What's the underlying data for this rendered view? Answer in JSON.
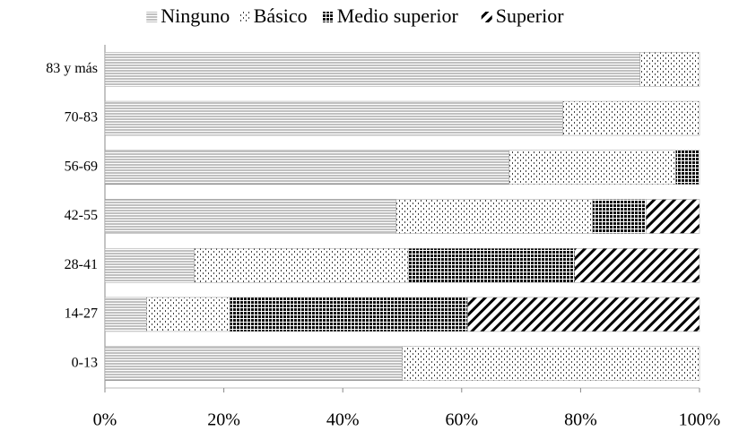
{
  "chart_data": {
    "type": "stacked_bar_horizontal",
    "categories": [
      "83 y más",
      "70-83",
      "56-69",
      "42-55",
      "28-41",
      "14-27",
      "0-13"
    ],
    "series": [
      {
        "name": "Ninguno",
        "color": "#808080",
        "pattern": "horizontal",
        "values": [
          90,
          77,
          68,
          49,
          15,
          7,
          50
        ]
      },
      {
        "name": "Básico",
        "color": "#404040",
        "pattern": "dots",
        "values": [
          10,
          23,
          28,
          33,
          36,
          14,
          50
        ]
      },
      {
        "name": "Medio superior",
        "color": "#111111",
        "pattern": "checker",
        "values": [
          0,
          0,
          4,
          9,
          28,
          40,
          0
        ]
      },
      {
        "name": "Superior",
        "color": "#000000",
        "pattern": "diagonal",
        "values": [
          0,
          0,
          0,
          9,
          21,
          39,
          0
        ]
      }
    ],
    "xlim": [
      0,
      100
    ],
    "xticks": [
      {
        "value": 0,
        "label": "0%"
      },
      {
        "value": 20,
        "label": "20%"
      },
      {
        "value": 40,
        "label": "40%"
      },
      {
        "value": 60,
        "label": "60%"
      },
      {
        "value": 80,
        "label": "80%"
      },
      {
        "value": 100,
        "label": "100%"
      }
    ],
    "legend": "top"
  }
}
